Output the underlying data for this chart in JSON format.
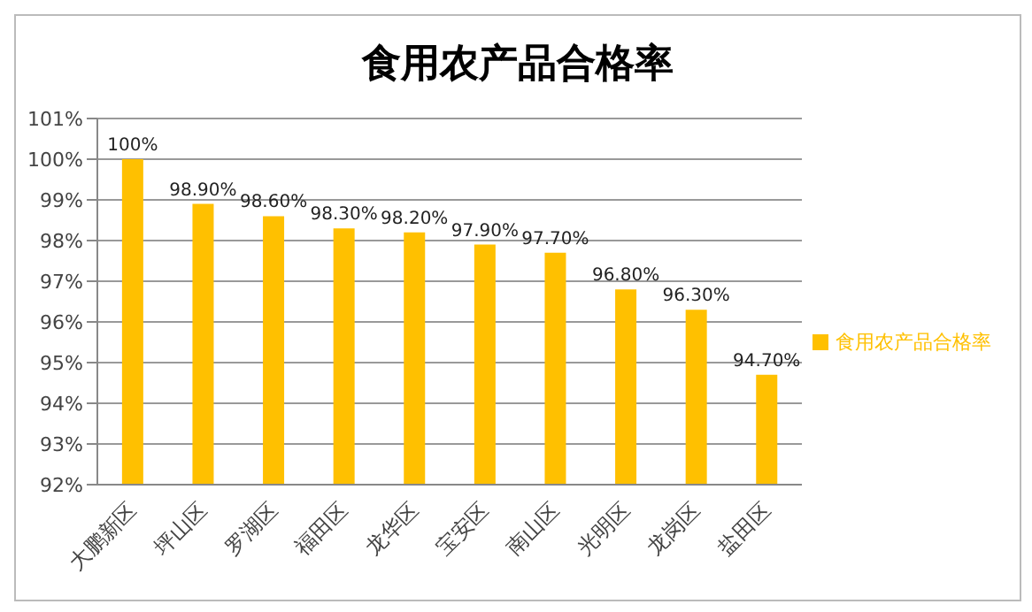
{
  "chart_data": {
    "type": "bar",
    "title": "食用农产品合格率",
    "categories": [
      "大鹏新区",
      "坪山区",
      "罗湖区",
      "福田区",
      "龙华区",
      "宝安区",
      "南山区",
      "光明区",
      "龙岗区",
      "盐田区"
    ],
    "series": [
      {
        "name": "食用农产品合格率",
        "color": "#ffc000",
        "values": [
          100,
          98.9,
          98.6,
          98.3,
          98.2,
          97.9,
          97.7,
          96.8,
          96.3,
          94.7
        ],
        "value_labels": [
          "100%",
          "98.90%",
          "98.60%",
          "98.30%",
          "98.20%",
          "97.90%",
          "97.70%",
          "96.80%",
          "96.30%",
          "94.70%"
        ]
      }
    ],
    "ylim": [
      92,
      101
    ],
    "yticks": [
      {
        "value": 92,
        "label": "92%"
      },
      {
        "value": 93,
        "label": "93%"
      },
      {
        "value": 94,
        "label": "94%"
      },
      {
        "value": 95,
        "label": "95%"
      },
      {
        "value": 96,
        "label": "96%"
      },
      {
        "value": 97,
        "label": "97%"
      },
      {
        "value": 98,
        "label": "98%"
      },
      {
        "value": 99,
        "label": "99%"
      },
      {
        "value": 100,
        "label": "100%"
      },
      {
        "value": 101,
        "label": "101%"
      }
    ],
    "grid": "y",
    "legend": "right"
  }
}
